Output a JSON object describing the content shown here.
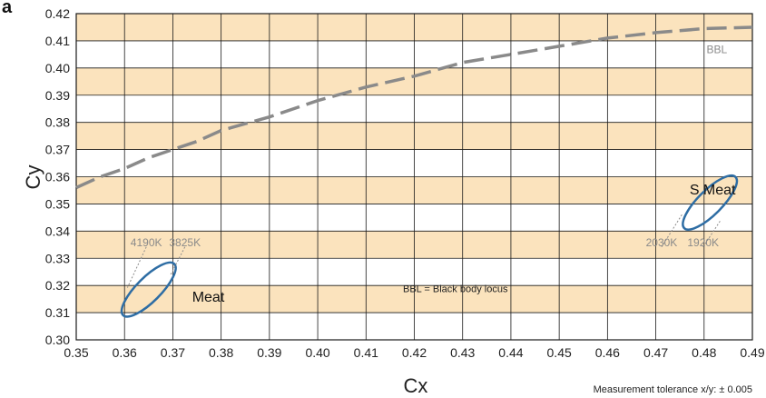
{
  "panel_label": "a",
  "footnote": "Measurement tolerance x/y: ± 0.005",
  "chart_data": {
    "type": "scatter",
    "xlabel": "Cx",
    "ylabel": "Cy",
    "xlim": [
      0.35,
      0.49
    ],
    "ylim": [
      0.3,
      0.42
    ],
    "x_ticks": [
      "0.35",
      "0.36",
      "0.37",
      "0.38",
      "0.39",
      "0.40",
      "0.41",
      "0.42",
      "0.43",
      "0.44",
      "0.45",
      "0.46",
      "0.47",
      "0.48",
      "0.49"
    ],
    "y_ticks": [
      "0.30",
      "0.31",
      "0.32",
      "0.33",
      "0.34",
      "0.35",
      "0.36",
      "0.37",
      "0.38",
      "0.39",
      "0.40",
      "0.41",
      "0.42"
    ],
    "grid": true,
    "band_color": "#fbe3bd",
    "bbl": {
      "label": "BBL",
      "color": "#8a8a8a",
      "points": [
        [
          0.35,
          0.356
        ],
        [
          0.355,
          0.36
        ],
        [
          0.36,
          0.363
        ],
        [
          0.365,
          0.367
        ],
        [
          0.37,
          0.37
        ],
        [
          0.375,
          0.373
        ],
        [
          0.38,
          0.377
        ],
        [
          0.39,
          0.382
        ],
        [
          0.4,
          0.388
        ],
        [
          0.41,
          0.393
        ],
        [
          0.42,
          0.397
        ],
        [
          0.43,
          0.402
        ],
        [
          0.44,
          0.405
        ],
        [
          0.45,
          0.408
        ],
        [
          0.46,
          0.411
        ],
        [
          0.47,
          0.413
        ],
        [
          0.48,
          0.4145
        ],
        [
          0.49,
          0.415
        ]
      ]
    },
    "ellipse_color": "#2e6da4",
    "ellipses": [
      {
        "name": "Meat",
        "center": [
          0.365,
          0.3185
        ],
        "semi_axes": [
          0.0075,
          0.0025
        ],
        "angle_deg": 45,
        "label_at": [
          0.374,
          0.314
        ],
        "cct": [
          {
            "label": "4190K",
            "end": [
              0.3606,
              0.3192
            ],
            "text_at": [
              0.3645,
              0.3335
            ]
          },
          {
            "label": "3825K",
            "end": [
              0.3695,
              0.3238
            ],
            "text_at": [
              0.3725,
              0.3335
            ]
          }
        ]
      },
      {
        "name": "S Meat",
        "center": [
          0.4812,
          0.3505
        ],
        "semi_axes": [
          0.0075,
          0.0025
        ],
        "angle_deg": 45,
        "label_at": [
          0.477,
          0.3535
        ],
        "cct": [
          {
            "label": "2030K",
            "end": [
              0.4755,
              0.3463
            ],
            "text_at": [
              0.4712,
              0.3335
            ]
          },
          {
            "label": "1920K",
            "end": [
              0.4835,
              0.3442
            ],
            "text_at": [
              0.4798,
              0.3335
            ]
          }
        ]
      }
    ],
    "annotation": {
      "text": "BBL = Black body locus",
      "at": [
        0.4285,
        0.3175
      ]
    }
  }
}
